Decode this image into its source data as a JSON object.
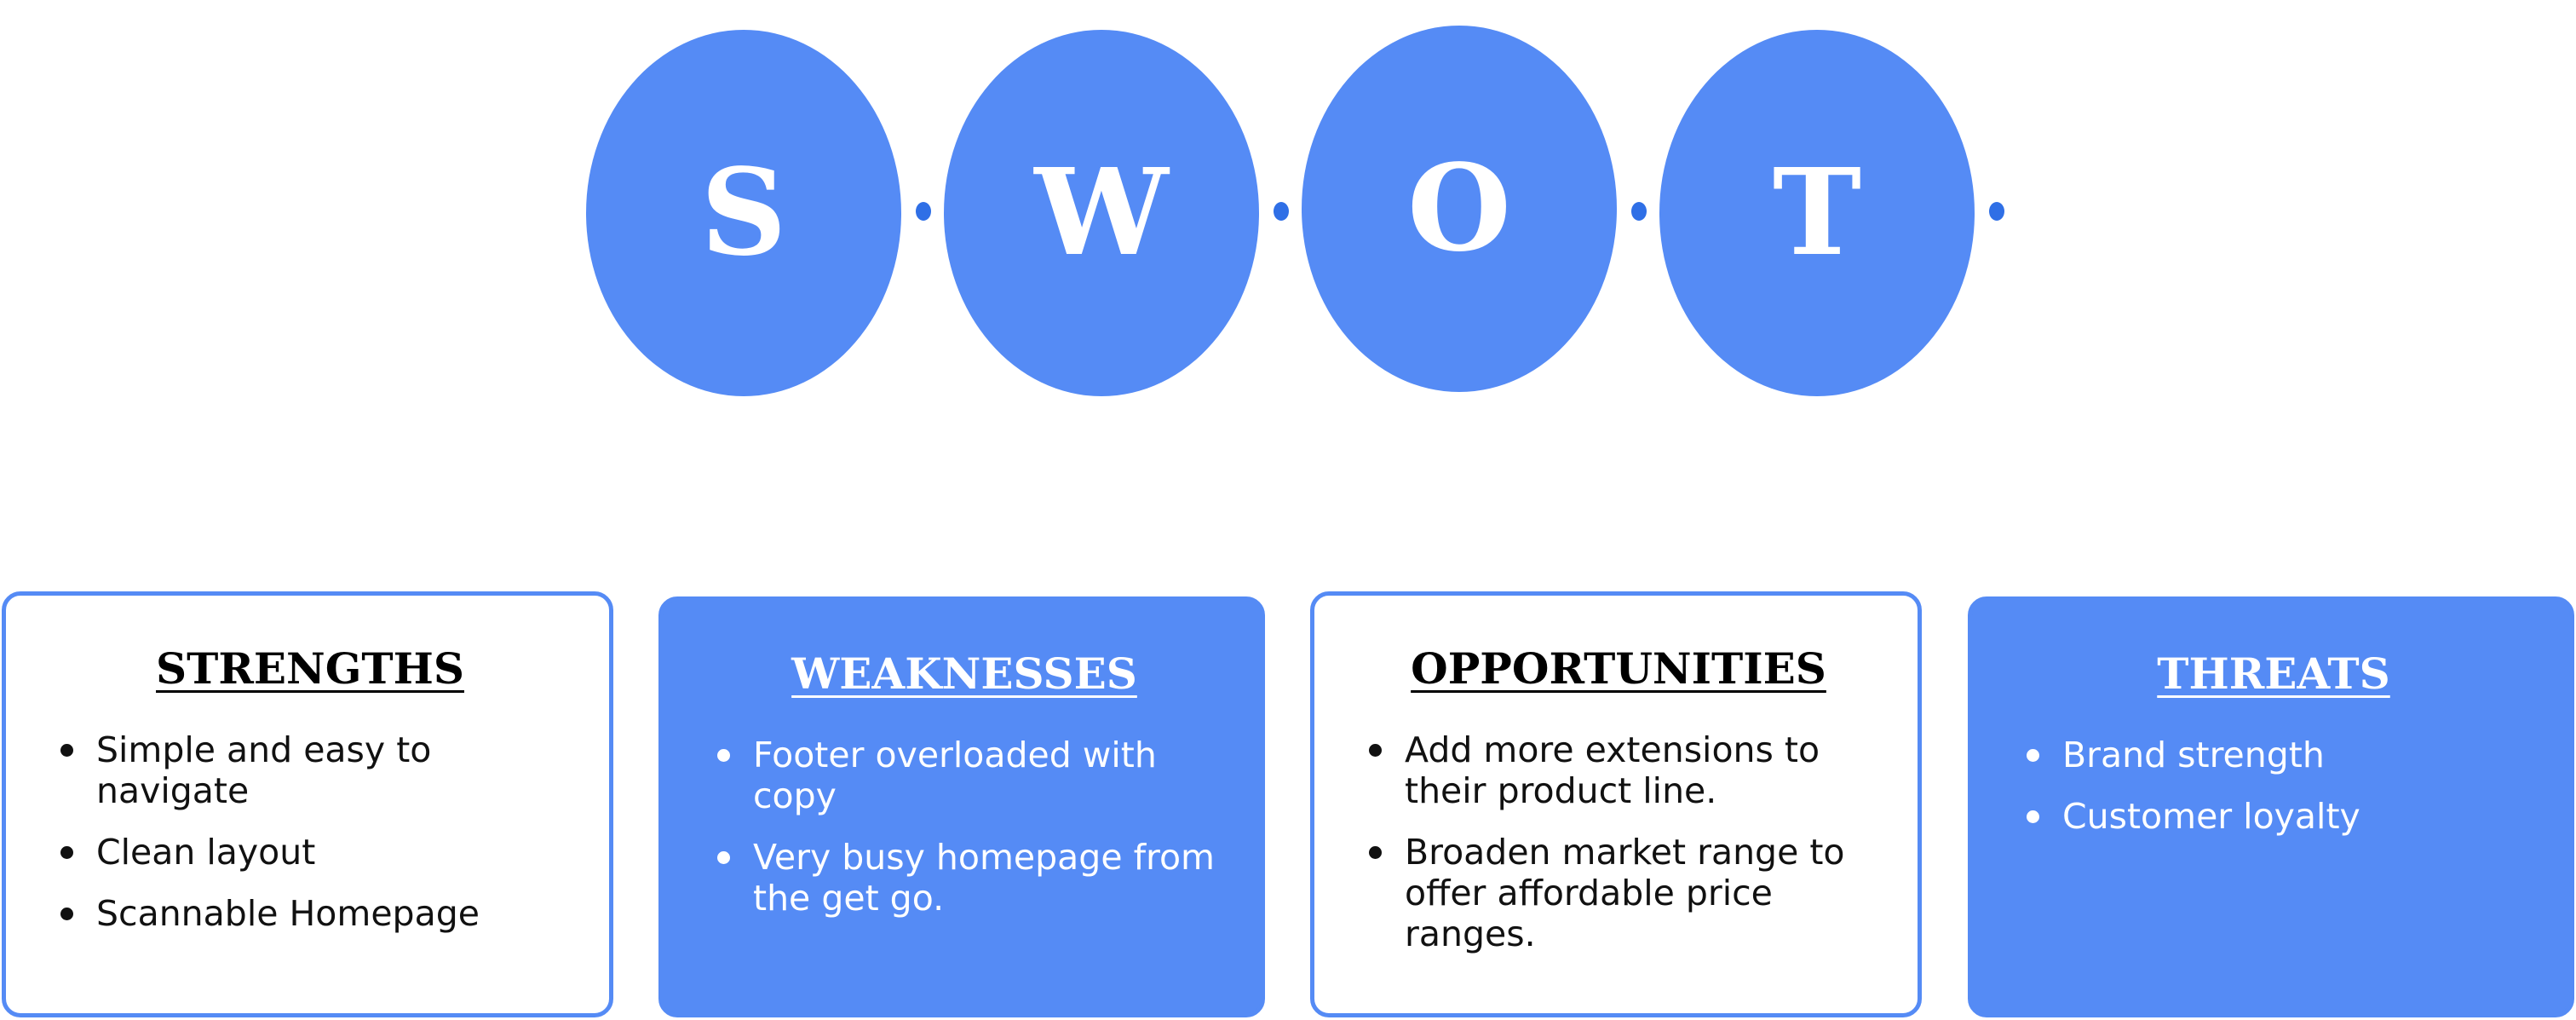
{
  "swot_letters": [
    "S",
    "W",
    "O",
    "T"
  ],
  "colors": {
    "accent": "#558bf5",
    "connector_dot": "#2f6fe6",
    "text_dark": "#111111",
    "text_light": "#ffffff"
  },
  "quadrants": [
    {
      "title": "STRENGTHS",
      "style": "outline",
      "items": [
        "Simple and easy to navigate",
        "Clean layout",
        "Scannable Homepage"
      ]
    },
    {
      "title": "WEAKNESSES",
      "style": "filled",
      "items": [
        "Footer overloaded with copy",
        "Very busy homepage from the get go."
      ]
    },
    {
      "title": "OPPORTUNITIES",
      "style": "outline",
      "items": [
        "Add more extensions to their product line.",
        "Broaden market range to offer affordable price ranges."
      ]
    },
    {
      "title": "THREATS",
      "style": "filled",
      "items": [
        "Brand strength",
        "Customer loyalty"
      ]
    }
  ]
}
